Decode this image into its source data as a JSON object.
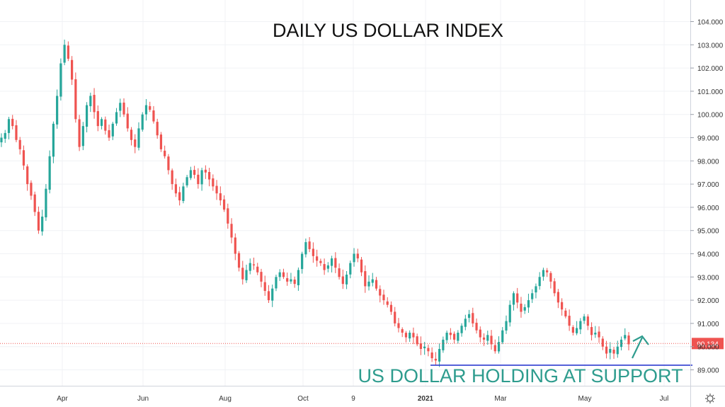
{
  "chart_data": {
    "type": "candlestick",
    "title": "DAILY US DOLLAR INDEX",
    "annotation": "US DOLLAR HOLDING AT SUPPORT",
    "support_level": 89.2,
    "last_price": 90.134,
    "last_price_label": "90.134",
    "ylim": [
      88.4,
      104.4
    ],
    "y_tick_labels": [
      "89.000",
      "90.000",
      "91.000",
      "92.000",
      "93.000",
      "94.000",
      "95.000",
      "96.000",
      "97.000",
      "98.000",
      "99.000",
      "100.000",
      "101.000",
      "102.000",
      "103.000",
      "104.000"
    ],
    "x_tick_labels": [
      "Apr",
      "Jun",
      "Aug",
      "Oct",
      "9",
      "2021",
      "Mar",
      "May",
      "Jul"
    ],
    "grid": true,
    "series": [
      {
        "values": [
          99.0,
          99.2,
          99.8,
          99.5,
          98.9,
          98.5,
          97.8,
          97.0,
          96.5,
          95.8,
          95.0,
          95.6,
          96.8,
          98.2,
          99.6,
          100.8,
          102.2,
          103.0,
          102.4,
          101.5,
          99.8,
          98.6,
          99.5,
          100.4,
          100.8,
          100.1,
          99.5,
          99.8,
          99.3,
          99.0,
          99.6,
          100.1,
          100.5,
          100.0,
          99.4,
          98.9,
          98.6,
          99.4,
          100.0,
          100.4,
          100.2,
          99.7,
          99.1,
          98.5,
          98.2,
          97.6,
          97.0,
          96.6,
          96.3,
          96.9,
          97.3,
          97.6,
          97.4,
          97.0,
          97.6,
          97.5,
          97.2,
          96.9,
          96.6,
          96.3,
          95.9,
          95.3,
          94.7,
          94.0,
          93.4,
          92.9,
          93.3,
          93.6,
          93.5,
          93.2,
          92.8,
          92.4,
          92.0,
          92.5,
          93.0,
          93.2,
          93.0,
          92.8,
          92.9,
          92.7,
          93.3,
          94.0,
          94.5,
          94.2,
          93.9,
          93.7,
          93.6,
          93.3,
          93.5,
          93.8,
          93.4,
          93.0,
          92.7,
          93.1,
          93.6,
          94.0,
          93.8,
          93.2,
          92.6,
          92.8,
          92.9,
          92.5,
          92.2,
          92.0,
          91.8,
          91.5,
          91.0,
          90.8,
          90.6,
          90.4,
          90.6,
          90.4,
          90.1,
          89.9,
          90.0,
          89.8,
          89.5,
          89.4,
          89.9,
          90.3,
          90.6,
          90.5,
          90.3,
          90.6,
          90.9,
          91.2,
          91.4,
          91.0,
          90.7,
          90.4,
          90.3,
          90.5,
          90.1,
          89.8,
          90.2,
          90.7,
          91.1,
          91.8,
          92.3,
          91.9,
          91.5,
          91.7,
          92.0,
          92.3,
          92.6,
          93.0,
          93.3,
          93.2,
          92.8,
          92.3,
          91.9,
          91.6,
          91.3,
          90.9,
          90.6,
          90.8,
          91.1,
          91.3,
          90.9,
          90.5,
          90.6,
          90.4,
          90.0,
          89.7,
          89.9,
          89.7,
          90.0,
          90.3,
          90.5,
          90.1
        ]
      }
    ]
  }
}
